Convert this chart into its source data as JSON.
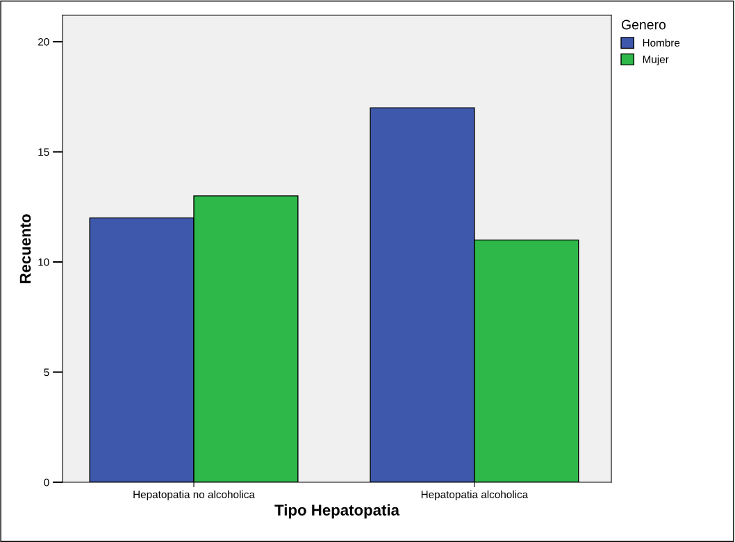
{
  "chart_data": {
    "type": "bar",
    "xlabel": "Tipo Hepatopatia",
    "ylabel": "Recuento",
    "legend_title": "Genero",
    "categories": [
      "Hepatopatia no alcoholica",
      "Hepatopatia alcoholica"
    ],
    "series": [
      {
        "name": "Hombre",
        "color": "#3e58ac",
        "values": [
          12,
          17
        ]
      },
      {
        "name": "Mujer",
        "color": "#2eb84a",
        "values": [
          13,
          11
        ]
      }
    ],
    "ylim": [
      0,
      21.2
    ],
    "yticks": [
      0,
      5,
      10,
      15,
      20
    ],
    "grid": false,
    "legend": "top right"
  }
}
